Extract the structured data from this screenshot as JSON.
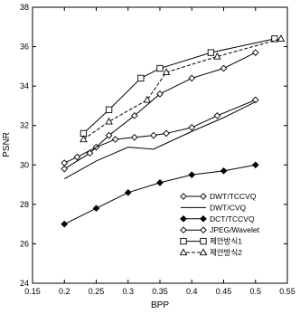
{
  "chart_data": {
    "type": "line",
    "title": "",
    "xlabel": "BPP",
    "ylabel": "PSNR",
    "xlim": [
      0.15,
      0.55
    ],
    "ylim": [
      24,
      38
    ],
    "x_ticks": [
      0.15,
      0.2,
      0.25,
      0.3,
      0.35,
      0.4,
      0.45,
      0.5,
      0.55
    ],
    "x_tick_labels": [
      "0.15",
      "0.2",
      "0.25",
      "0.3",
      "0.35",
      "0.4",
      "0.45",
      "0.5",
      "0.55"
    ],
    "y_ticks": [
      24,
      26,
      28,
      30,
      32,
      34,
      36,
      38
    ],
    "y_tick_labels": [
      "24",
      "26",
      "28",
      "30",
      "32",
      "34",
      "36",
      "38"
    ],
    "grid": false,
    "legend_position": "bottom-right",
    "series": [
      {
        "name": "DWT/TCCVQ",
        "marker": "diamond",
        "line_style": "solid",
        "x": [
          0.2,
          0.22,
          0.25,
          0.28,
          0.31,
          0.34,
          0.36,
          0.4,
          0.44,
          0.5
        ],
        "y": [
          30.1,
          30.4,
          30.9,
          31.3,
          31.4,
          31.5,
          31.6,
          31.9,
          32.5,
          33.3
        ]
      },
      {
        "name": "DWT/CVQ",
        "marker": "none",
        "line_style": "solid",
        "x": [
          0.2,
          0.25,
          0.3,
          0.34,
          0.4,
          0.45,
          0.5
        ],
        "y": [
          29.3,
          30.2,
          30.9,
          30.8,
          31.7,
          32.4,
          33.2
        ]
      },
      {
        "name": "DCT/TCCVQ",
        "marker": "diamond-filled",
        "line_style": "solid",
        "x": [
          0.2,
          0.25,
          0.3,
          0.35,
          0.4,
          0.45,
          0.5
        ],
        "y": [
          27.0,
          27.8,
          28.6,
          29.1,
          29.5,
          29.7,
          30.0
        ]
      },
      {
        "name": "JPEG/Wavelet",
        "marker": "diamond",
        "line_style": "solid",
        "x": [
          0.2,
          0.24,
          0.27,
          0.31,
          0.35,
          0.4,
          0.45,
          0.5
        ],
        "y": [
          29.8,
          30.6,
          31.5,
          32.5,
          33.6,
          34.4,
          34.9,
          35.7
        ]
      },
      {
        "name": "제안방식1",
        "marker": "square",
        "line_style": "solid",
        "x": [
          0.23,
          0.27,
          0.32,
          0.35,
          0.43,
          0.53
        ],
        "y": [
          31.6,
          32.8,
          34.4,
          34.9,
          35.7,
          36.4
        ]
      },
      {
        "name": "제안방식2",
        "marker": "triangle",
        "line_style": "dashed",
        "x": [
          0.23,
          0.27,
          0.33,
          0.36,
          0.44,
          0.54
        ],
        "y": [
          31.3,
          32.2,
          33.3,
          34.7,
          35.5,
          36.4
        ]
      }
    ]
  }
}
